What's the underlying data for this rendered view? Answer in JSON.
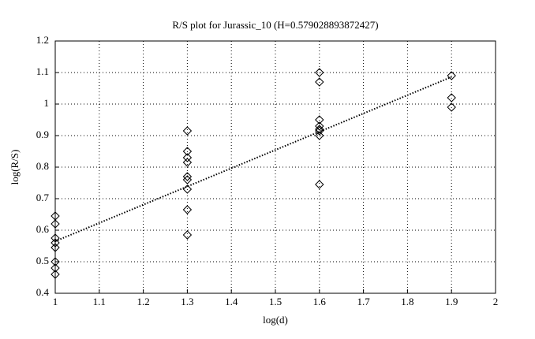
{
  "chart_data": {
    "type": "scatter",
    "title": "R/S plot for Jurassic_10 (H=0.579028893872427)",
    "x_label": "log(d)",
    "y_label": "log(R/S)",
    "xlim": [
      1,
      2
    ],
    "xticks": [
      1,
      1.1,
      1.2,
      1.3,
      1.4,
      1.5,
      1.6,
      1.7,
      1.8,
      1.9,
      2
    ],
    "ylim": [
      0.4,
      1.2
    ],
    "yticks": [
      0.4,
      0.5,
      0.6,
      0.7,
      0.8,
      0.9,
      1,
      1.1,
      1.2
    ],
    "grid": true,
    "series": [
      {
        "marker": "diamond",
        "color": "#000000",
        "x": [
          1,
          1,
          1,
          1,
          1,
          1,
          1,
          1,
          1.3,
          1.3,
          1.3,
          1.3,
          1.3,
          1.3,
          1.3,
          1.3,
          1.3,
          1.6,
          1.6,
          1.6,
          1.6,
          1.6,
          1.6,
          1.6,
          1.6,
          1.9,
          1.9,
          1.9
        ],
        "values": [
          0.645,
          0.62,
          0.575,
          0.56,
          0.545,
          0.5,
          0.48,
          0.46,
          0.915,
          0.85,
          0.83,
          0.815,
          0.77,
          0.76,
          0.73,
          0.665,
          0.585,
          1.1,
          1.07,
          0.95,
          0.93,
          0.92,
          0.915,
          0.9,
          0.745,
          1.09,
          1.02,
          0.99
        ]
      },
      {
        "marker": "none",
        "line": "dotted",
        "color": "#000000",
        "x": [
          1,
          1.9
        ],
        "values": [
          0.565,
          1.086
        ]
      }
    ]
  }
}
